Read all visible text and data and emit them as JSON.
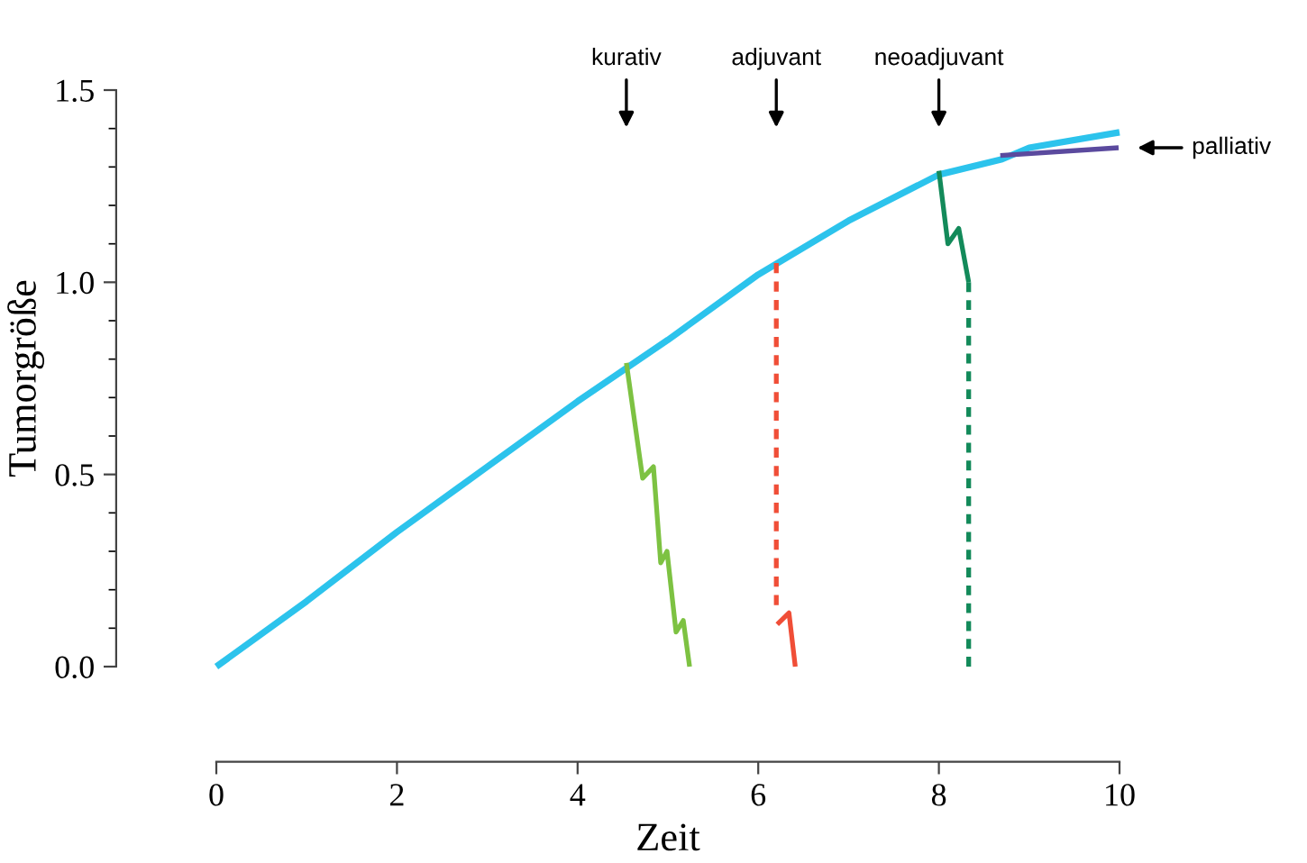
{
  "chart_data": {
    "type": "line",
    "xlabel": "Zeit",
    "ylabel": "Tumorgröße",
    "xlim": [
      0,
      10
    ],
    "ylim": [
      0,
      1.5
    ],
    "xticks": [
      0,
      2,
      4,
      6,
      8,
      10
    ],
    "yticks": [
      {
        "value": 0,
        "label": "0.0"
      },
      {
        "value": 0.5,
        "label": "0.5"
      },
      {
        "value": 1.0,
        "label": "1.0"
      },
      {
        "value": 1.5,
        "label": "1.5"
      }
    ],
    "grid": false,
    "legend": false,
    "marker": "none",
    "series": [
      {
        "color": "#2cc3ec",
        "line_style": "solid",
        "x": [
          0,
          1,
          2,
          3,
          4,
          5,
          6,
          7,
          8,
          8.7,
          9,
          10
        ],
        "values": [
          0,
          0.17,
          0.35,
          0.52,
          0.69,
          0.85,
          1.02,
          1.16,
          1.28,
          1.32,
          1.35,
          1.39
        ]
      },
      {
        "color": "#7dc242",
        "line_style": "solid",
        "x": [
          4.54,
          4.72,
          4.84,
          4.92,
          4.99,
          5.09,
          5.17,
          5.24
        ],
        "values": [
          0.79,
          0.49,
          0.52,
          0.27,
          0.3,
          0.09,
          0.12,
          0.0
        ]
      },
      {
        "color": "#f04e37",
        "line_style": "dashed",
        "x": [
          6.2,
          6.2
        ],
        "values": [
          1.05,
          0.16
        ]
      },
      {
        "color": "#f04e37",
        "line_style": "solid",
        "x": [
          6.21,
          6.34,
          6.41
        ],
        "values": [
          0.11,
          0.14,
          0.0
        ]
      },
      {
        "color": "#138a5a",
        "line_style": "solid",
        "x": [
          8.0,
          8.1,
          8.22,
          8.33
        ],
        "values": [
          1.29,
          1.1,
          1.14,
          1.0
        ]
      },
      {
        "color": "#138a5a",
        "line_style": "dashed",
        "x": [
          8.33,
          8.33
        ],
        "values": [
          1.0,
          0.0
        ]
      },
      {
        "color": "#5b4a9e",
        "line_style": "solid",
        "x": [
          8.68,
          9.99
        ],
        "values": [
          1.33,
          1.35
        ]
      }
    ],
    "annotations": [
      "kurativ",
      "adjuvant",
      "neoadjuvant",
      "palliativ"
    ]
  }
}
